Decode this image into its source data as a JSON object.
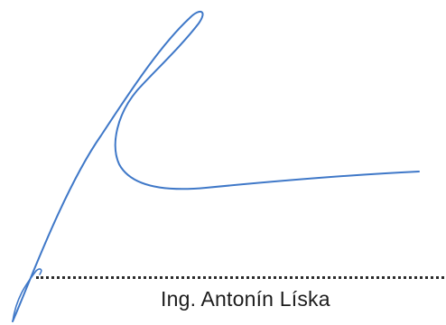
{
  "signature": {
    "ink_color": "#3f78c8",
    "icon": "handwritten-signature"
  },
  "signer": {
    "name": "Ing. Antonín Líska"
  }
}
